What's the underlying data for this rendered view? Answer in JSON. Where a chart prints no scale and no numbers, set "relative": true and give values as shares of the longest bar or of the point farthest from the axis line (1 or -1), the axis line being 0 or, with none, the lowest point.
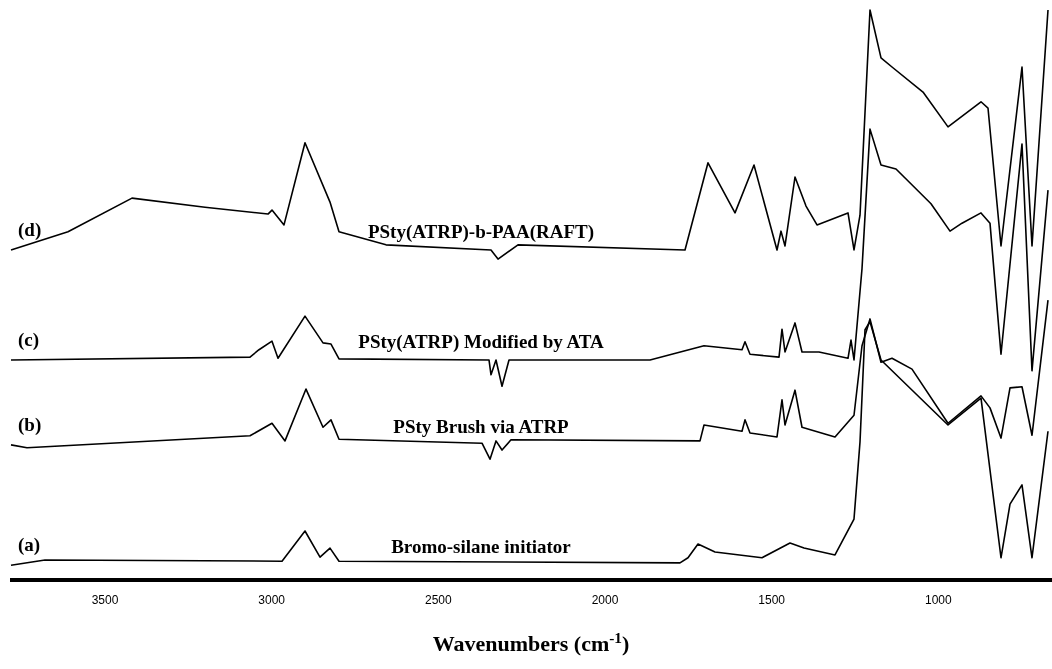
{
  "chart_data": {
    "type": "line",
    "relative": true,
    "xlabel": "Wavenumbers (cm$^{-1}$)",
    "xlim": [
      3785,
      659
    ],
    "xticks": [
      3500,
      3000,
      2500,
      2000,
      1500,
      1000
    ],
    "grid": false,
    "marker": "none",
    "line_style": "solid",
    "annotations": [
      "(d)",
      "(c)",
      "(b)",
      "(a)"
    ],
    "series": [
      {
        "name": "PSty(ATRP)-b-PAA(RAFT)",
        "color": "#000000",
        "x": [
          3782,
          3611,
          3419,
          3200,
          3011,
          2999,
          2963,
          2900,
          2825,
          2798,
          2657,
          2342,
          2321,
          2261,
          1760,
          1691,
          1610,
          1553,
          1484,
          1472,
          1460,
          1430,
          1397,
          1364,
          1271,
          1253,
          1235,
          1205,
          1172,
          1139,
          1046,
          971,
          872,
          851,
          812,
          749,
          719,
          671
        ],
        "values": [
          0.579,
          0.611,
          0.67,
          0.654,
          0.642,
          0.649,
          0.623,
          0.767,
          0.663,
          0.611,
          0.588,
          0.579,
          0.563,
          0.588,
          0.579,
          0.732,
          0.644,
          0.728,
          0.579,
          0.612,
          0.586,
          0.707,
          0.656,
          0.623,
          0.644,
          0.579,
          0.64,
          1.0,
          0.916,
          0.9,
          0.856,
          0.795,
          0.839,
          0.828,
          0.586,
          0.9,
          0.586,
          1.0
        ]
      },
      {
        "name": "PSty(ATRP) Modified by ATA",
        "color": "#000000",
        "x": [
          3782,
          3065,
          3038,
          2999,
          2981,
          2900,
          2846,
          2822,
          2798,
          2348,
          2342,
          2327,
          2309,
          2288,
          1865,
          1703,
          1589,
          1580,
          1565,
          1478,
          1469,
          1460,
          1430,
          1409,
          1358,
          1271,
          1262,
          1253,
          1229,
          1205,
          1172,
          1127,
          1022,
          965,
          929,
          872,
          845,
          812,
          749,
          719,
          671
        ],
        "values": [
          0.386,
          0.391,
          0.404,
          0.419,
          0.389,
          0.463,
          0.416,
          0.414,
          0.388,
          0.386,
          0.36,
          0.386,
          0.34,
          0.386,
          0.386,
          0.411,
          0.404,
          0.418,
          0.396,
          0.391,
          0.44,
          0.4,
          0.451,
          0.4,
          0.4,
          0.389,
          0.421,
          0.386,
          0.546,
          0.791,
          0.728,
          0.721,
          0.66,
          0.612,
          0.626,
          0.644,
          0.626,
          0.396,
          0.765,
          0.367,
          0.684
        ]
      },
      {
        "name": "PSty Brush via ATRP",
        "color": "#000000",
        "x": [
          3782,
          3734,
          3065,
          2999,
          2960,
          2897,
          2846,
          2822,
          2798,
          2369,
          2345,
          2327,
          2309,
          2282,
          1715,
          1703,
          1589,
          1580,
          1565,
          1484,
          1469,
          1460,
          1430,
          1409,
          1310,
          1253,
          1229,
          1205,
          1172,
          1139,
          1079,
          971,
          872,
          845,
          812,
          785,
          749,
          719,
          671
        ],
        "values": [
          0.237,
          0.232,
          0.253,
          0.275,
          0.244,
          0.335,
          0.268,
          0.281,
          0.247,
          0.24,
          0.212,
          0.244,
          0.228,
          0.246,
          0.244,
          0.272,
          0.261,
          0.281,
          0.258,
          0.251,
          0.316,
          0.272,
          0.333,
          0.268,
          0.251,
          0.289,
          0.411,
          0.458,
          0.382,
          0.389,
          0.37,
          0.275,
          0.323,
          0.302,
          0.249,
          0.337,
          0.339,
          0.254,
          0.491
        ]
      },
      {
        "name": "Bromo-silane initiator",
        "color": "#000000",
        "x": [
          3782,
          3680,
          2969,
          2900,
          2855,
          2825,
          2798,
          1775,
          1751,
          1721,
          1670,
          1529,
          1445,
          1403,
          1310,
          1253,
          1235,
          1220,
          1205,
          1172,
          971,
          872,
          812,
          785,
          749,
          719,
          671
        ],
        "values": [
          0.026,
          0.035,
          0.033,
          0.086,
          0.04,
          0.056,
          0.033,
          0.03,
          0.039,
          0.063,
          0.049,
          0.039,
          0.065,
          0.056,
          0.044,
          0.107,
          0.242,
          0.439,
          0.453,
          0.386,
          0.272,
          0.319,
          0.039,
          0.133,
          0.167,
          0.039,
          0.261
        ]
      }
    ]
  }
}
